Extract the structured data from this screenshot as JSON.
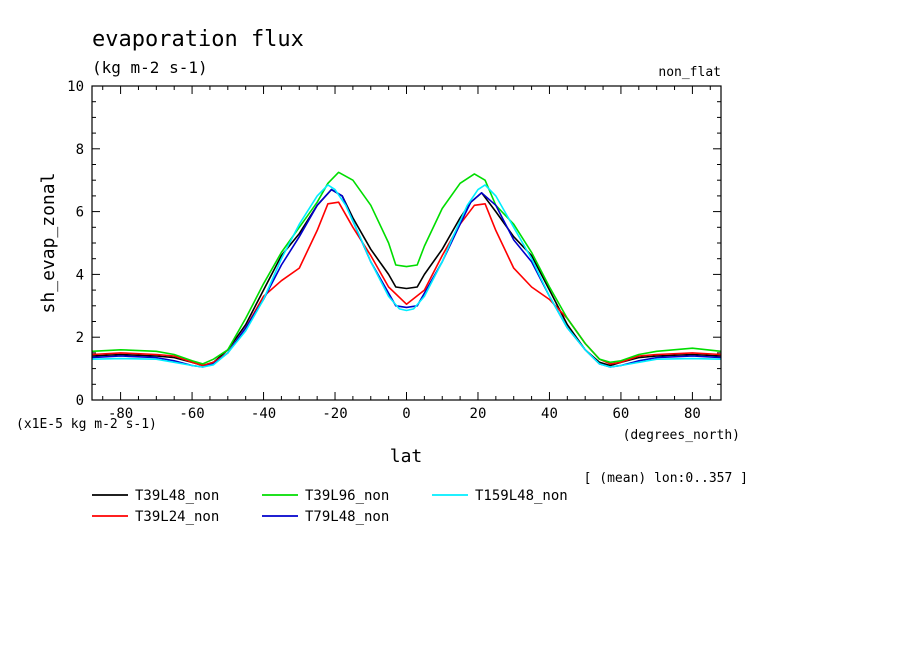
{
  "chart_data": {
    "type": "line",
    "title": "evaporation flux",
    "subtitle": "(kg m-2 s-1)",
    "top_right_label": "non_flat",
    "xlabel": "lat",
    "xunits": "(degrees_north)",
    "ylabel": "sh_evap_zonal",
    "yunits": "(x1E-5 kg m-2 s-1)",
    "footnote": "[ (mean) lon:0..357 ]",
    "xlim": [
      -88,
      88
    ],
    "ylim": [
      0,
      10
    ],
    "xticks": [
      -80,
      -60,
      -40,
      -20,
      0,
      20,
      40,
      60,
      80
    ],
    "yticks": [
      0,
      2,
      4,
      6,
      8,
      10
    ],
    "grid": false,
    "legend_position": "bottom",
    "series": [
      {
        "name": "T39L48_non",
        "color": "#000000",
        "x": [
          -88,
          -80,
          -70,
          -65,
          -60,
          -57,
          -54,
          -50,
          -45,
          -40,
          -35,
          -30,
          -25,
          -21,
          -18,
          -15,
          -10,
          -5,
          -3,
          0,
          3,
          5,
          10,
          15,
          18,
          21,
          25,
          30,
          35,
          40,
          45,
          50,
          54,
          57,
          60,
          65,
          70,
          80,
          88
        ],
        "y": [
          1.4,
          1.45,
          1.4,
          1.35,
          1.2,
          1.1,
          1.2,
          1.6,
          2.4,
          3.5,
          4.6,
          5.3,
          6.2,
          6.7,
          6.5,
          5.8,
          4.8,
          4.0,
          3.6,
          3.55,
          3.6,
          4.0,
          4.8,
          5.8,
          6.3,
          6.6,
          6.0,
          5.2,
          4.6,
          3.5,
          2.4,
          1.6,
          1.2,
          1.1,
          1.2,
          1.35,
          1.4,
          1.45,
          1.4
        ]
      },
      {
        "name": "T39L24_non",
        "color": "#ff0000",
        "x": [
          -88,
          -80,
          -70,
          -65,
          -60,
          -57,
          -54,
          -50,
          -45,
          -40,
          -35,
          -30,
          -25,
          -22,
          -19,
          -15,
          -10,
          -5,
          0,
          5,
          10,
          15,
          19,
          22,
          25,
          30,
          35,
          40,
          45,
          50,
          54,
          57,
          60,
          65,
          70,
          80,
          88
        ],
        "y": [
          1.45,
          1.5,
          1.45,
          1.4,
          1.2,
          1.1,
          1.2,
          1.5,
          2.3,
          3.3,
          3.8,
          4.2,
          5.4,
          6.25,
          6.3,
          5.5,
          4.6,
          3.6,
          3.05,
          3.5,
          4.6,
          5.6,
          6.2,
          6.25,
          5.4,
          4.2,
          3.6,
          3.2,
          2.6,
          1.8,
          1.3,
          1.15,
          1.2,
          1.4,
          1.45,
          1.5,
          1.45
        ]
      },
      {
        "name": "T39L96_non",
        "color": "#00dd00",
        "x": [
          -88,
          -80,
          -70,
          -65,
          -60,
          -57,
          -54,
          -50,
          -45,
          -40,
          -35,
          -30,
          -25,
          -22,
          -19,
          -15,
          -10,
          -5,
          -3,
          0,
          3,
          5,
          10,
          15,
          19,
          22,
          25,
          30,
          35,
          40,
          45,
          50,
          54,
          57,
          60,
          65,
          70,
          80,
          88
        ],
        "y": [
          1.55,
          1.6,
          1.55,
          1.45,
          1.25,
          1.15,
          1.3,
          1.6,
          2.6,
          3.7,
          4.7,
          5.5,
          6.3,
          6.9,
          7.25,
          7.0,
          6.2,
          5.0,
          4.3,
          4.25,
          4.3,
          4.9,
          6.1,
          6.9,
          7.2,
          7.0,
          6.2,
          5.6,
          4.7,
          3.6,
          2.6,
          1.8,
          1.3,
          1.2,
          1.25,
          1.45,
          1.55,
          1.65,
          1.55
        ]
      },
      {
        "name": "T79L48_non",
        "color": "#0000cc",
        "x": [
          -88,
          -80,
          -70,
          -65,
          -60,
          -57,
          -54,
          -50,
          -45,
          -40,
          -35,
          -30,
          -25,
          -21,
          -18,
          -15,
          -10,
          -5,
          -3,
          0,
          3,
          5,
          10,
          15,
          18,
          21,
          25,
          30,
          35,
          40,
          45,
          50,
          54,
          57,
          60,
          65,
          70,
          80,
          88
        ],
        "y": [
          1.35,
          1.4,
          1.35,
          1.25,
          1.1,
          1.05,
          1.15,
          1.5,
          2.3,
          3.2,
          4.3,
          5.2,
          6.2,
          6.7,
          6.5,
          5.7,
          4.4,
          3.4,
          3.0,
          2.95,
          3.0,
          3.4,
          4.4,
          5.6,
          6.3,
          6.6,
          6.2,
          5.1,
          4.4,
          3.3,
          2.3,
          1.6,
          1.15,
          1.05,
          1.1,
          1.25,
          1.35,
          1.4,
          1.35
        ]
      },
      {
        "name": "T159L48_non",
        "color": "#00eeff",
        "x": [
          -88,
          -80,
          -70,
          -65,
          -60,
          -57,
          -54,
          -50,
          -45,
          -40,
          -35,
          -30,
          -25,
          -22,
          -20,
          -17,
          -13,
          -10,
          -5,
          -2,
          0,
          2,
          5,
          10,
          13,
          17,
          20,
          22,
          25,
          30,
          35,
          40,
          45,
          50,
          54,
          57,
          60,
          65,
          70,
          80,
          88
        ],
        "y": [
          1.3,
          1.32,
          1.3,
          1.2,
          1.1,
          1.05,
          1.12,
          1.5,
          2.2,
          3.2,
          4.5,
          5.6,
          6.5,
          6.85,
          6.7,
          6.2,
          5.2,
          4.4,
          3.3,
          2.9,
          2.85,
          2.9,
          3.3,
          4.4,
          5.2,
          6.2,
          6.7,
          6.85,
          6.5,
          5.5,
          4.5,
          3.3,
          2.3,
          1.6,
          1.15,
          1.05,
          1.1,
          1.2,
          1.3,
          1.32,
          1.3
        ]
      }
    ]
  }
}
